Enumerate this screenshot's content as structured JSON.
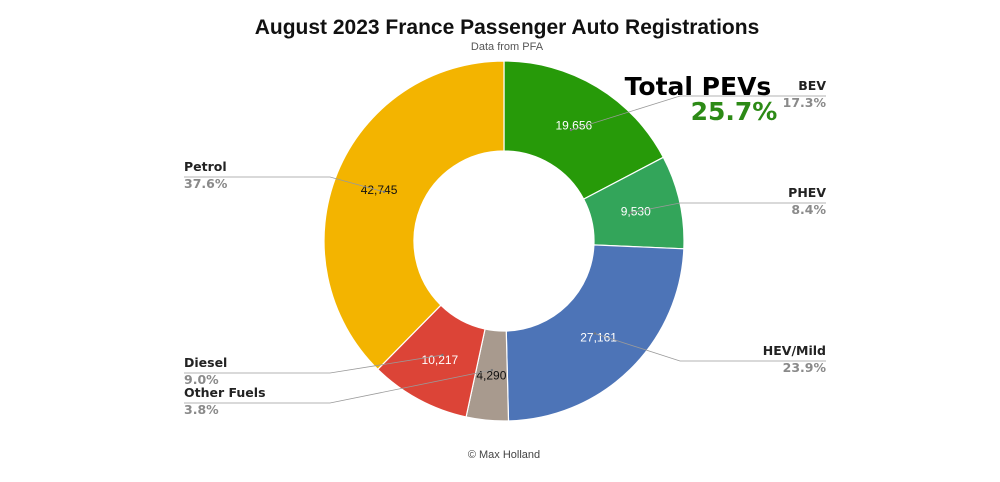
{
  "chart_data": {
    "type": "pie",
    "donut": true,
    "title": "August 2023 France Passenger Auto Registrations",
    "subtitle": "Data from PFA",
    "credit": "© Max Holland",
    "slices": [
      {
        "label": "BEV",
        "value": 19656,
        "value_label": "19,656",
        "percent_label": "17.3%",
        "color": "#279a09",
        "label_side": "right"
      },
      {
        "label": "PHEV",
        "value": 9530,
        "value_label": "9,530",
        "percent_label": "8.4%",
        "color": "#33a55a",
        "label_side": "right"
      },
      {
        "label": "HEV/Mild",
        "value": 27161,
        "value_label": "27,161",
        "percent_label": "23.9%",
        "color": "#4d74b7",
        "label_side": "right"
      },
      {
        "label": "Other Fuels",
        "value": 4290,
        "value_label": "4,290",
        "percent_label": "3.8%",
        "color": "#a89a8e",
        "label_side": "left"
      },
      {
        "label": "Diesel",
        "value": 10217,
        "value_label": "10,217",
        "percent_label": "9.0%",
        "color": "#dc4437",
        "label_side": "left"
      },
      {
        "label": "Petrol",
        "value": 42745,
        "value_label": "42,745",
        "percent_label": "37.6%",
        "color": "#f3b400",
        "label_side": "left"
      }
    ],
    "value_label_colors": {
      "dark_background": "#ffffff",
      "light_background": "#111111"
    },
    "annotation": {
      "title": "Total PEVs",
      "value": "25.7%",
      "value_color": "#2c8a16"
    },
    "legend": "none"
  }
}
